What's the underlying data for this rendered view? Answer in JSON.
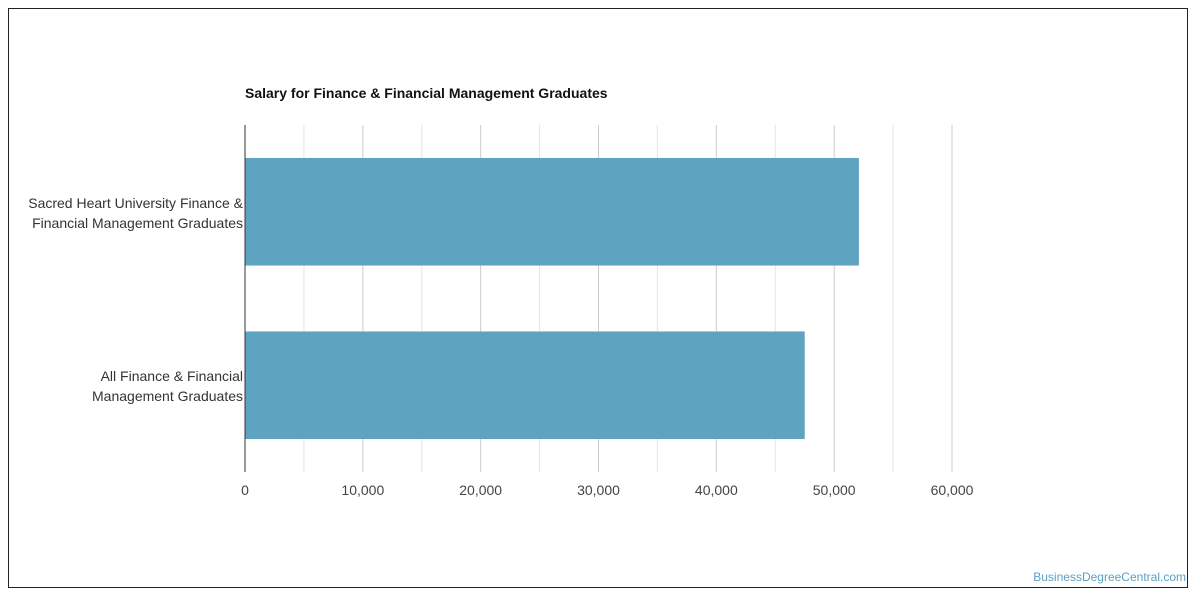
{
  "chart_data": {
    "type": "bar",
    "orientation": "horizontal",
    "title": "Salary for Finance & Financial Management Graduates",
    "categories": [
      "Sacred Heart University Finance & Financial Management Graduates",
      "All Finance & Financial Management Graduates"
    ],
    "values": [
      52100,
      47500
    ],
    "xlabel": "",
    "ylabel": "",
    "xlim": [
      0,
      60000
    ],
    "ticks": [
      "0",
      "10,000",
      "20,000",
      "30,000",
      "40,000",
      "50,000",
      "60,000"
    ],
    "grid": true,
    "bar_color": "#5ea3c0"
  },
  "category_lines": [
    [
      "Sacred Heart University Finance &",
      "Financial Management Graduates"
    ],
    [
      "All Finance & Financial",
      "Management Graduates"
    ]
  ],
  "watermark": "BusinessDegreeCentral.com"
}
